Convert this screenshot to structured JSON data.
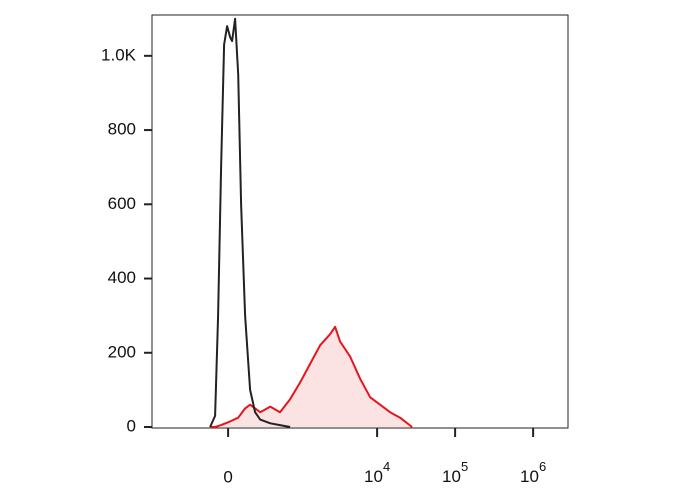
{
  "chart_data": {
    "type": "histogram-overlay",
    "x_scale": "asinh",
    "x_linear_width": 246,
    "xlim": [
      -1150,
      2800000
    ],
    "xticks": [
      0,
      {
        "value": 10000,
        "label": "10",
        "sup": "4"
      },
      {
        "value": 100000,
        "label": "10",
        "sup": "5"
      },
      {
        "value": 1000000,
        "label": "10",
        "sup": "6"
      }
    ],
    "ylim": [
      0,
      1110
    ],
    "yticks": [
      0,
      200,
      400,
      600,
      800,
      {
        "value": 1000,
        "label": "1.0K"
      }
    ],
    "series": [
      {
        "color": "#222222",
        "fill": null,
        "x": [
          -137,
          -97,
          -74,
          -51,
          -29,
          -7,
          15,
          29,
          51,
          74,
          97,
          129,
          171,
          217,
          269,
          392,
          543,
          748
        ],
        "values": [
          0,
          30,
          300,
          700,
          1030,
          1080,
          1050,
          1040,
          1100,
          950,
          600,
          300,
          100,
          40,
          20,
          10,
          5,
          0
        ]
      },
      {
        "color": "#e8141c",
        "fill": "#fbe3e3",
        "x": [
          -137,
          -97,
          -51,
          15,
          74,
          129,
          171,
          217,
          269,
          392,
          543,
          748,
          1016,
          1373,
          1852,
          2492,
          2890,
          3353,
          4504,
          6052,
          8143,
          10930,
          14680,
          19720,
          28120
        ],
        "values": [
          0,
          0,
          5,
          15,
          25,
          50,
          60,
          50,
          40,
          55,
          40,
          75,
          120,
          170,
          220,
          250,
          270,
          230,
          190,
          130,
          80,
          60,
          40,
          25,
          0
        ]
      }
    ]
  }
}
